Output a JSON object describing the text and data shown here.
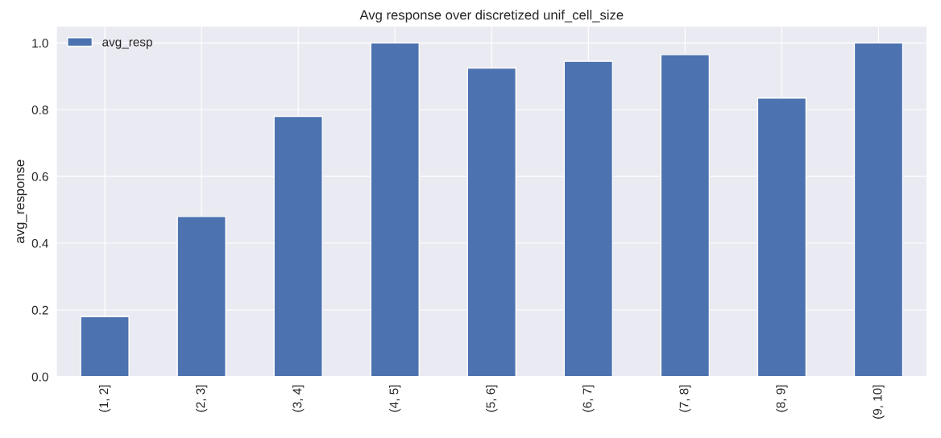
{
  "chart_data": {
    "type": "bar",
    "title": "Avg response over discretized unif_cell_size",
    "ylabel": "avg_response",
    "categories": [
      "(1, 2]",
      "(2, 3]",
      "(3, 4]",
      "(4, 5]",
      "(5, 6]",
      "(6, 7]",
      "(7, 8]",
      "(8, 9]",
      "(9, 10]"
    ],
    "series": [
      {
        "name": "avg_resp",
        "color": "#4c72b0",
        "values": [
          0.18,
          0.48,
          0.78,
          1.0,
          0.925,
          0.945,
          0.965,
          0.835,
          1.0
        ]
      }
    ],
    "ylim": [
      0,
      1.05
    ],
    "yticks": [
      {
        "value": 0,
        "label": "0.0"
      },
      0.2,
      0.4,
      0.6,
      0.8,
      {
        "value": 1,
        "label": "1.0"
      }
    ],
    "grid": true,
    "legend": "top left"
  }
}
